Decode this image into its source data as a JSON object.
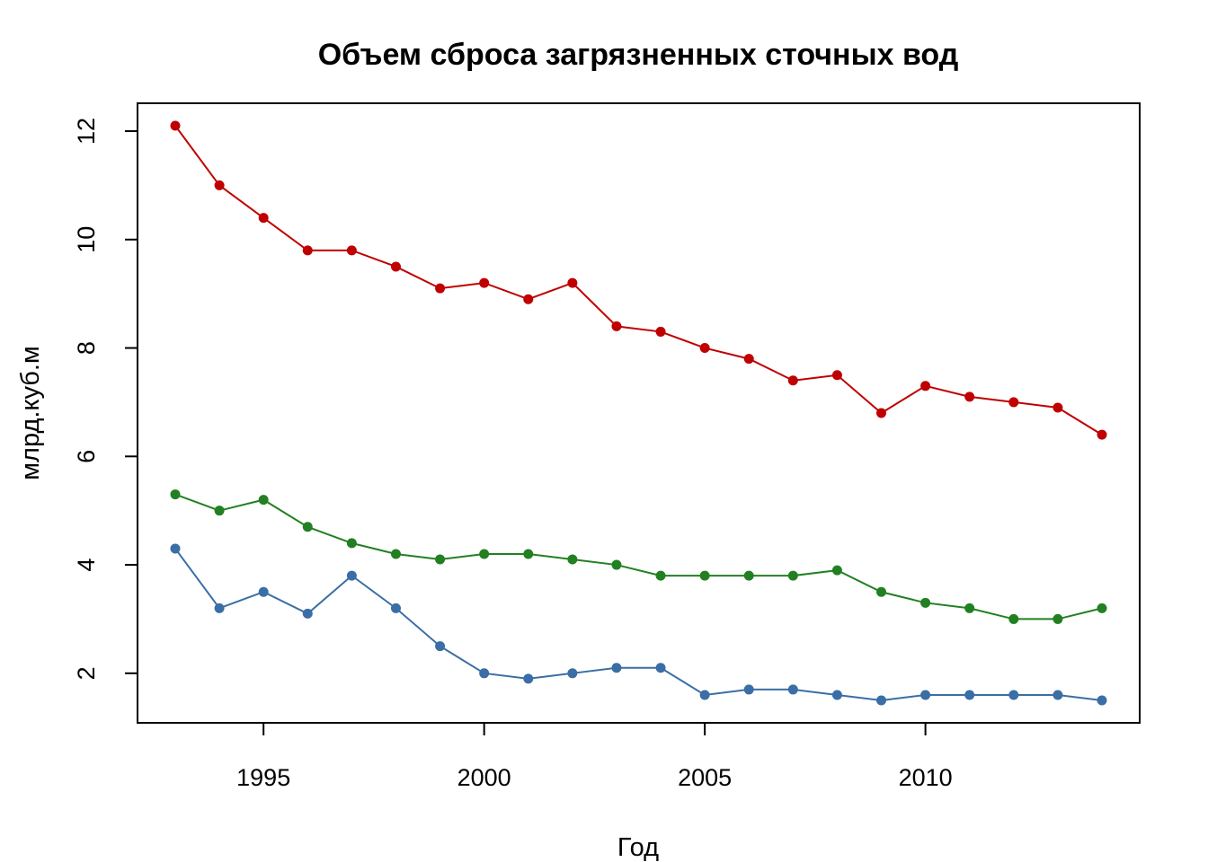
{
  "chart_data": {
    "type": "line",
    "title": "Объем сброса загрязненных сточных вод",
    "xlabel": "Год",
    "ylabel": "млрд.куб.м",
    "xlim": [
      1993,
      2014
    ],
    "ylim": [
      1.5,
      12.1
    ],
    "x_ticks": [
      1995,
      2000,
      2005,
      2010
    ],
    "y_ticks": [
      2,
      4,
      6,
      8,
      10,
      12
    ],
    "grid": false,
    "x": [
      1993,
      1994,
      1995,
      1996,
      1997,
      1998,
      1999,
      2000,
      2001,
      2002,
      2003,
      2004,
      2005,
      2006,
      2007,
      2008,
      2009,
      2010,
      2011,
      2012,
      2013,
      2014
    ],
    "series": [
      {
        "color": "#c00000",
        "values": [
          12.1,
          11.0,
          10.4,
          9.8,
          9.8,
          9.5,
          9.1,
          9.2,
          8.9,
          9.2,
          8.4,
          8.3,
          8.0,
          7.8,
          7.4,
          7.5,
          6.8,
          7.3,
          7.1,
          7.0,
          6.9,
          6.4
        ]
      },
      {
        "color": "#228022",
        "values": [
          5.3,
          5.0,
          5.2,
          4.7,
          4.4,
          4.2,
          4.1,
          4.2,
          4.2,
          4.1,
          4.0,
          3.8,
          3.8,
          3.8,
          3.8,
          3.9,
          3.5,
          3.3,
          3.2,
          3.0,
          3.0,
          3.2
        ]
      },
      {
        "color": "#3a6ea5",
        "values": [
          4.3,
          3.2,
          3.5,
          3.1,
          3.8,
          3.2,
          2.5,
          2.0,
          1.9,
          2.0,
          2.1,
          2.1,
          1.6,
          1.7,
          1.7,
          1.6,
          1.5,
          1.6,
          1.6,
          1.6,
          1.6,
          1.5
        ]
      }
    ]
  }
}
